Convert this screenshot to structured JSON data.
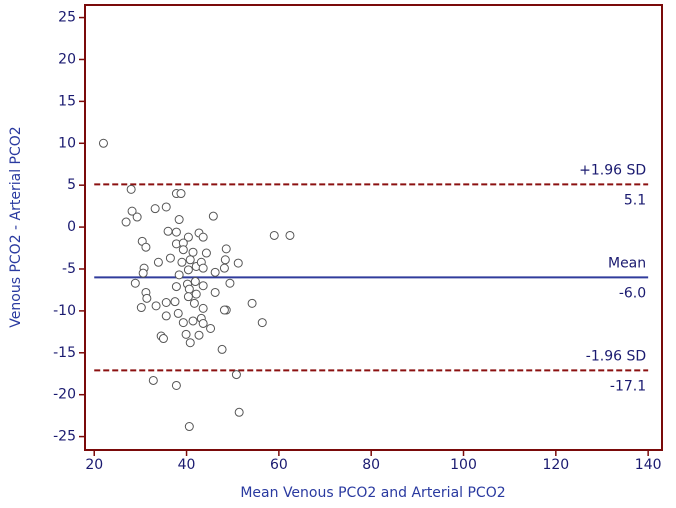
{
  "chart_data": {
    "type": "scatter",
    "x_label": "Mean Venous PCO2 and Arterial PCO2",
    "y_label": "Venous PCO2 - Arterial PCO2",
    "xlim": [
      18,
      143
    ],
    "ylim": [
      -26.6,
      26.5
    ],
    "xticks": [
      20,
      40,
      60,
      80,
      100,
      120,
      140
    ],
    "yticks": [
      25,
      20,
      15,
      10,
      5,
      0,
      -5,
      -10,
      -15,
      -20,
      -25
    ],
    "color": "#555555",
    "x": [
      22,
      28,
      37.8,
      38.8,
      26.9,
      28.2,
      29.3,
      33.2,
      35.6,
      45.8,
      38.4,
      36,
      37.8,
      42.7,
      43.6,
      40.4,
      59,
      62.4,
      30.4,
      31.2,
      37.8,
      39.3,
      48.6,
      41.4,
      44.3,
      39.3,
      36.5,
      39,
      42.1,
      48.4,
      51.2,
      33.9,
      30.8,
      30.6,
      40.8,
      43.2,
      40.4,
      43.6,
      46.2,
      48.2,
      38.4,
      28.9,
      37.8,
      40.2,
      41.9,
      40.6,
      43.6,
      49.4,
      31.2,
      46.2,
      31.4,
      40.4,
      42.1,
      37.5,
      41.7,
      35.6,
      54.2,
      30.2,
      33.4,
      43.6,
      48.6,
      48.2,
      35.6,
      38.2,
      43.2,
      39.3,
      41.4,
      43.6,
      56.4,
      45.2,
      34.5,
      35,
      39.9,
      42.7,
      40.8,
      47.7,
      32.8,
      37.8,
      50.8,
      51.4,
      40.6
    ],
    "values": [
      10,
      4.5,
      4,
      4,
      0.6,
      1.9,
      1.2,
      2.2,
      2.4,
      1.3,
      0.9,
      -0.5,
      -0.6,
      -0.7,
      -1.2,
      -1.2,
      -1,
      -1,
      -1.7,
      -2.4,
      -2,
      -1.9,
      -2.6,
      -3,
      -3.1,
      -2.7,
      -3.7,
      -4.2,
      -4.7,
      -3.9,
      -4.3,
      -4.2,
      -4.9,
      -5.5,
      -3.9,
      -4.2,
      -5.1,
      -4.9,
      -5.4,
      -4.9,
      -5.7,
      -6.7,
      -7.1,
      -6.8,
      -6.5,
      -7.4,
      -7,
      -6.7,
      -7.8,
      -7.8,
      -8.5,
      -8.3,
      -8,
      -8.9,
      -9.1,
      -9,
      -9.1,
      -9.6,
      -9.4,
      -9.7,
      -9.9,
      -9.9,
      -10.6,
      -10.3,
      -10.9,
      -11.4,
      -11.2,
      -11.5,
      -11.4,
      -12.1,
      -13,
      -13.3,
      -12.8,
      -12.9,
      -13.8,
      -14.6,
      -18.3,
      -18.9,
      -17.6,
      -22.1,
      -23.8
    ],
    "reference_lines": [
      {
        "label": "+1.96 SD",
        "value": 5.1,
        "value_label": "5.1",
        "color": "#8b1010",
        "dashed": true
      },
      {
        "label": "Mean",
        "value": -6.0,
        "value_label": "-6.0",
        "color": "#303c9c",
        "dashed": false
      },
      {
        "label": "-1.96 SD",
        "value": -17.1,
        "value_label": "-17.1",
        "color": "#8b1010",
        "dashed": true
      }
    ]
  }
}
